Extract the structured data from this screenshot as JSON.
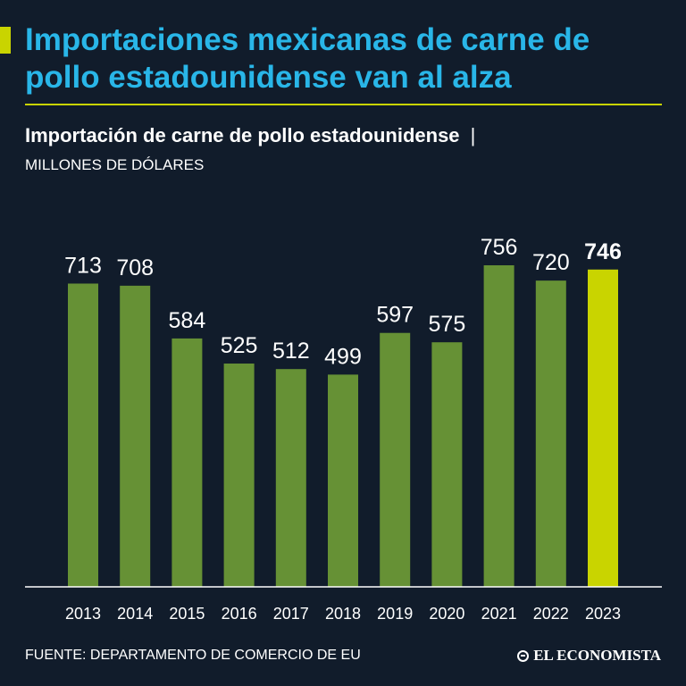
{
  "headline": "Importaciones mexicanas de carne de pollo estadounidense van al alza",
  "subtitle": "Importación de carne de pollo estadounidense",
  "subtitle_separator": "|",
  "units": "MILLONES DE DÓLARES",
  "source": "FUENTE: DEPARTAMENTO DE COMERCIO DE EU",
  "logo": "EL ECONOMISTA",
  "colors": {
    "background": "#111c2b",
    "headline": "#29b6e8",
    "accent": "#c9d400",
    "bar": "#669135",
    "bar_highlight": "#c9d400",
    "text": "#ffffff",
    "axis": "#ffffff"
  },
  "chart_data": {
    "type": "bar",
    "title": "Importación de carne de pollo estadounidense",
    "ylabel": "MILLONES DE DÓLARES",
    "xlabel": "",
    "categories": [
      "2013",
      "2014",
      "2015",
      "2016",
      "2017",
      "2018",
      "2019",
      "2020",
      "2021",
      "2022",
      "2023"
    ],
    "values": [
      713,
      708,
      584,
      525,
      512,
      499,
      597,
      575,
      756,
      720,
      746
    ],
    "ylim": [
      0,
      756
    ],
    "grid": false,
    "highlight_category": "2023"
  }
}
